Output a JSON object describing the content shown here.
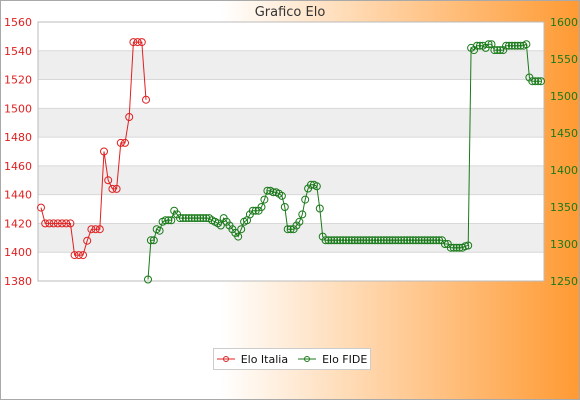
{
  "chart_data": {
    "type": "line",
    "title": "Grafico Elo",
    "grid": true,
    "legend_position": "bottom",
    "y_left": {
      "ylim": [
        1380,
        1560
      ],
      "ticks": [
        1380,
        1400,
        1420,
        1440,
        1460,
        1480,
        1500,
        1520,
        1540,
        1560
      ]
    },
    "y_right": {
      "ylim": [
        1250,
        1600
      ],
      "ticks": [
        1250,
        1300,
        1350,
        1400,
        1450,
        1500,
        1550,
        1600
      ]
    },
    "series": [
      {
        "name": "Elo Italia",
        "color": "#e02020",
        "axis": "left",
        "values": [
          1431,
          1420,
          1420,
          1420,
          1420,
          1420,
          1420,
          1420,
          1398,
          1398,
          1398,
          1408,
          1416,
          1416,
          1416,
          1470,
          1450,
          1444,
          1444,
          1476,
          1476,
          1494,
          1546,
          1546,
          1546,
          1506
        ]
      },
      {
        "name": "Elo FIDE",
        "color": "#1a7a1a",
        "axis": "right",
        "values": [
          1252,
          1305,
          1305,
          1320,
          1318,
          1330,
          1332,
          1332,
          1332,
          1345,
          1340,
          1335,
          1335,
          1335,
          1335,
          1335,
          1335,
          1335,
          1335,
          1335,
          1335,
          1335,
          1332,
          1330,
          1328,
          1325,
          1335,
          1330,
          1325,
          1320,
          1315,
          1310,
          1320,
          1330,
          1332,
          1340,
          1345,
          1345,
          1345,
          1350,
          1360,
          1372,
          1372,
          1370,
          1370,
          1368,
          1365,
          1350,
          1320,
          1320,
          1320,
          1325,
          1330,
          1340,
          1360,
          1375,
          1380,
          1380,
          1378,
          1348,
          1310,
          1305,
          1305,
          1305,
          1305,
          1305,
          1305,
          1305,
          1305,
          1305,
          1305,
          1305,
          1305,
          1305,
          1305,
          1305,
          1305,
          1305,
          1305,
          1305,
          1305,
          1305,
          1305,
          1305,
          1305,
          1305,
          1305,
          1305,
          1305,
          1305,
          1305,
          1305,
          1305,
          1305,
          1305,
          1305,
          1305,
          1305,
          1305,
          1305,
          1305,
          1305,
          1300,
          1300,
          1295,
          1295,
          1295,
          1295,
          1295,
          1297,
          1298,
          1565,
          1562,
          1568,
          1568,
          1568,
          1565,
          1570,
          1570,
          1562,
          1562,
          1562,
          1562,
          1568,
          1568,
          1568,
          1568,
          1568,
          1568,
          1568,
          1570,
          1525,
          1520,
          1520,
          1520,
          1520
        ]
      }
    ]
  },
  "legend": {
    "items": [
      "Elo Italia",
      "Elo FIDE"
    ]
  }
}
